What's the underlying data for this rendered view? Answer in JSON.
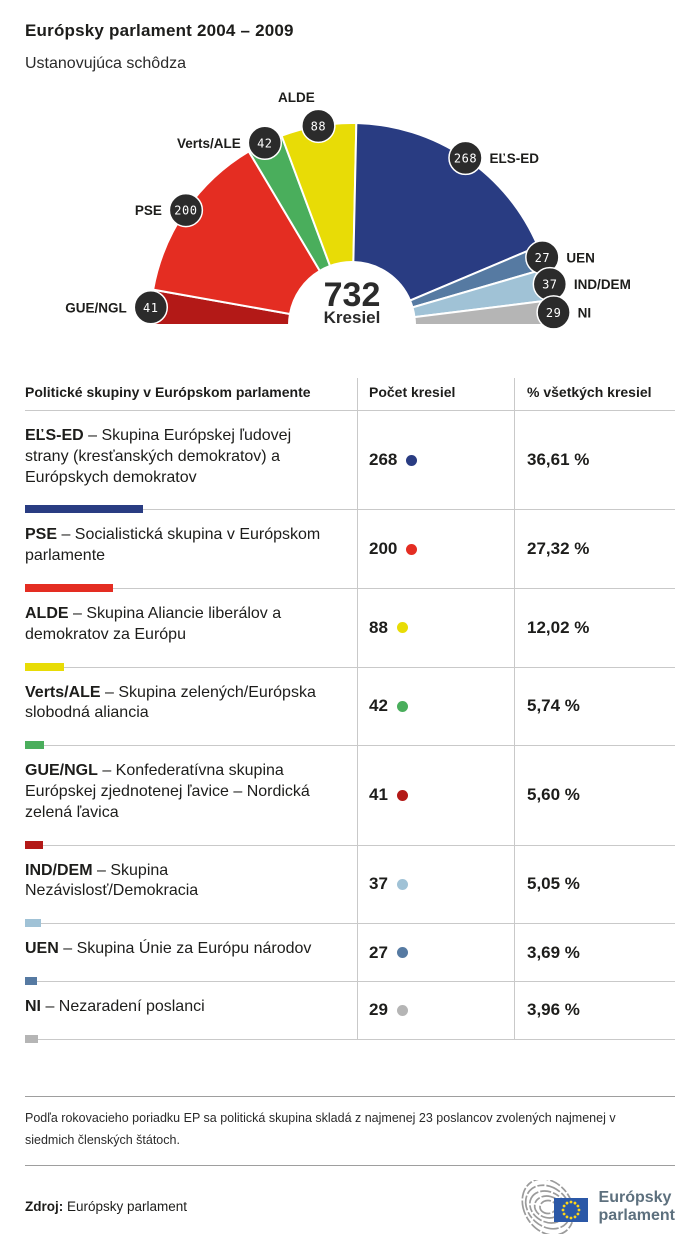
{
  "header": {
    "title": "Európsky parlament 2004 – 2009",
    "subtitle": "Ustanovujúca schôdza"
  },
  "chart_data": {
    "type": "pie",
    "subtype": "half-donut-hemicycle",
    "total": 732,
    "total_label": "732",
    "total_sublabel": "Kresiel",
    "legend_position": "around-arc",
    "groups": [
      {
        "label": "GUE/NGL",
        "seats": 41,
        "color": "#b31917",
        "label_side": "left"
      },
      {
        "label": "PSE",
        "seats": 200,
        "color": "#e42d22",
        "label_side": "left"
      },
      {
        "label": "Verts/ALE",
        "seats": 42,
        "color": "#4aae5c",
        "label_side": "left"
      },
      {
        "label": "ALDE",
        "seats": 88,
        "color": "#e8dc06",
        "label_side": "top"
      },
      {
        "label": "EĽS-ED",
        "seats": 268,
        "color": "#293c82",
        "label_side": "right"
      },
      {
        "label": "UEN",
        "seats": 27,
        "color": "#567aa2",
        "label_side": "right"
      },
      {
        "label": "IND/DEM",
        "seats": 37,
        "color": "#a0c2d6",
        "label_side": "right"
      },
      {
        "label": "NI",
        "seats": 29,
        "color": "#b5b5b5",
        "label_side": "right"
      }
    ]
  },
  "table": {
    "columns": [
      "Politické skupiny v Európskom parlamente",
      "Počet kresiel",
      "% všetkých kresiel"
    ],
    "code_desc_separator": " – ",
    "bar_max_width": 118,
    "bar_max_seats": 268,
    "rows": [
      {
        "code": "EĽS-ED",
        "desc": "Skupina Európskej ľudovej strany (kresťanských demokratov) a Európskych demokratov",
        "seats": "268",
        "pct": "36,61 %",
        "color": "#293c82"
      },
      {
        "code": "PSE",
        "desc": "Socialistická skupina v Európskom parlamente",
        "seats": "200",
        "pct": "27,32 %",
        "color": "#e42d22"
      },
      {
        "code": "ALDE",
        "desc": "Skupina Aliancie liberálov a demokratov za Európu",
        "seats": "88",
        "pct": "12,02 %",
        "color": "#e8dc06"
      },
      {
        "code": "Verts/ALE",
        "desc": "Skupina zelených/Európska slobodná aliancia",
        "seats": "42",
        "pct": "5,74 %",
        "color": "#4aae5c"
      },
      {
        "code": "GUE/NGL",
        "desc": "Konfederatívna skupina Európskej zjednotenej ľavice – Nordická zelená ľavica",
        "seats": "41",
        "pct": "5,60 %",
        "color": "#b31917"
      },
      {
        "code": "IND/DEM",
        "desc": "Skupina Nezávislosť/Demokracia",
        "seats": "37",
        "pct": "5,05 %",
        "color": "#a0c2d6"
      },
      {
        "code": "UEN",
        "desc": "Skupina Únie za Európu národov",
        "seats": "27",
        "pct": "3,69 %",
        "color": "#567aa2"
      },
      {
        "code": "NI",
        "desc": "Nezaradení poslanci",
        "seats": "29",
        "pct": "3,96 %",
        "color": "#b5b5b5"
      }
    ]
  },
  "footnote": "Podľa rokovacieho poriadku EP sa politická skupina skladá z najmenej 23 poslancov zvolených najmenej v siedmich členských štátoch.",
  "source": {
    "label": "Zdroj:",
    "value": " Európsky parlament"
  },
  "logo": {
    "line1": "Európsky",
    "line2": "parlament",
    "flag_blue": "#2b58a7",
    "star_yellow": "#ffd617",
    "arc_gray": "#9b9b9b"
  }
}
